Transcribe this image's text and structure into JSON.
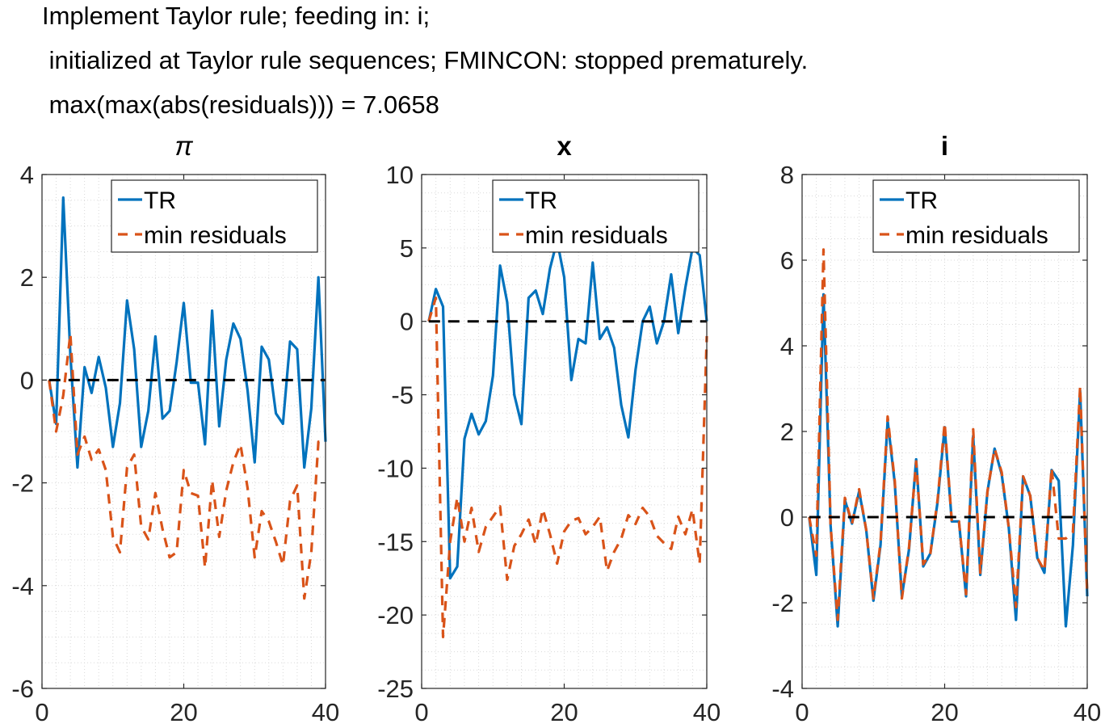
{
  "header": {
    "lines": [
      "Implement Taylor rule; feeding in: i;",
      " initialized at Taylor rule sequences; FMINCON: stopped prematurely.",
      " max(max(abs(residuals))) = 7.0658"
    ]
  },
  "colors": {
    "tr": "#0072BD",
    "min_residuals": "#D95319",
    "zero_line": "#000000",
    "grid": "#d9d9d9"
  },
  "chart_data": [
    {
      "type": "line",
      "title": "π",
      "xlim": [
        0,
        40
      ],
      "ylim": [
        -6,
        4
      ],
      "xticks": [
        0,
        20,
        40
      ],
      "yticks": [
        -6,
        -4,
        -2,
        0,
        2,
        4
      ],
      "grid": "minor",
      "legend": {
        "placement": "top-right",
        "entries": [
          "TR",
          "min residuals"
        ]
      },
      "series": [
        {
          "name": "TR",
          "style": "solid",
          "x": [
            1,
            2,
            3,
            4,
            5,
            6,
            7,
            8,
            9,
            10,
            11,
            12,
            13,
            14,
            15,
            16,
            17,
            18,
            19,
            20,
            21,
            22,
            23,
            24,
            25,
            26,
            27,
            28,
            29,
            30,
            31,
            32,
            33,
            34,
            35,
            36,
            37,
            38,
            39,
            40
          ],
          "values": [
            0.0,
            -0.85,
            3.55,
            0.5,
            -1.7,
            0.25,
            -0.25,
            0.45,
            -0.15,
            -1.3,
            -0.45,
            1.55,
            0.6,
            -1.3,
            -0.6,
            0.85,
            -0.75,
            -0.6,
            0.35,
            1.5,
            -0.05,
            -0.05,
            -1.25,
            1.35,
            -0.9,
            0.4,
            1.1,
            0.8,
            -0.2,
            -1.6,
            0.65,
            0.4,
            -0.65,
            -0.85,
            0.75,
            0.6,
            -1.7,
            -0.55,
            2.0,
            -1.2
          ]
        },
        {
          "name": "min residuals",
          "style": "dashed",
          "x": [
            1,
            2,
            3,
            4,
            5,
            6,
            7,
            8,
            9,
            10,
            11,
            12,
            13,
            14,
            15,
            16,
            17,
            18,
            19,
            20,
            21,
            22,
            23,
            24,
            25,
            26,
            27,
            28,
            29,
            30,
            31,
            32,
            33,
            34,
            35,
            36,
            37,
            38,
            39,
            40
          ],
          "values": [
            0.0,
            -1.0,
            -0.3,
            0.9,
            -1.45,
            -1.1,
            -1.55,
            -1.35,
            -1.75,
            -3.05,
            -3.35,
            -1.7,
            -1.45,
            -2.85,
            -3.1,
            -2.2,
            -2.9,
            -3.45,
            -3.35,
            -1.75,
            -2.2,
            -2.25,
            -3.65,
            -1.95,
            -3.05,
            -2.15,
            -1.6,
            -1.25,
            -2.1,
            -3.45,
            -2.55,
            -2.75,
            -3.15,
            -3.6,
            -2.35,
            -2.05,
            -4.25,
            -3.35,
            -1.2,
            -1.2
          ]
        },
        {
          "name": "",
          "style": "zero",
          "x": [
            1,
            40
          ],
          "values": [
            0,
            0
          ]
        }
      ]
    },
    {
      "type": "line",
      "title": "x",
      "xlim": [
        0,
        40
      ],
      "ylim": [
        -25,
        10
      ],
      "xticks": [
        0,
        20,
        40
      ],
      "yticks": [
        -25,
        -20,
        -15,
        -10,
        -5,
        0,
        5,
        10
      ],
      "grid": "minor",
      "legend": {
        "placement": "top-right",
        "entries": [
          "TR",
          "min residuals"
        ]
      },
      "series": [
        {
          "name": "TR",
          "style": "solid",
          "x": [
            1,
            2,
            3,
            4,
            5,
            6,
            7,
            8,
            9,
            10,
            11,
            12,
            13,
            14,
            15,
            16,
            17,
            18,
            19,
            20,
            21,
            22,
            23,
            24,
            25,
            26,
            27,
            28,
            29,
            30,
            31,
            32,
            33,
            34,
            35,
            36,
            37,
            38,
            39,
            40
          ],
          "values": [
            0.0,
            2.2,
            1.0,
            -17.5,
            -16.7,
            -8.0,
            -6.3,
            -7.7,
            -6.8,
            -3.7,
            3.8,
            1.3,
            -5.0,
            -7.0,
            1.6,
            2.1,
            0.5,
            3.6,
            5.5,
            3.0,
            -4.0,
            -1.2,
            -1.5,
            4.0,
            -1.2,
            -0.4,
            -1.8,
            -5.7,
            -7.9,
            -3.3,
            0.0,
            1.0,
            -1.5,
            0.0,
            3.2,
            -0.8,
            2.3,
            5.0,
            4.5,
            0.0
          ]
        },
        {
          "name": "min residuals",
          "style": "dashed",
          "x": [
            1,
            2,
            3,
            4,
            5,
            6,
            7,
            8,
            9,
            10,
            11,
            12,
            13,
            14,
            15,
            16,
            17,
            18,
            19,
            20,
            21,
            22,
            23,
            24,
            25,
            26,
            27,
            28,
            29,
            30,
            31,
            32,
            33,
            34,
            35,
            36,
            37,
            38,
            39,
            40
          ],
          "values": [
            0.0,
            1.6,
            -21.5,
            -15.0,
            -12.0,
            -15.0,
            -12.7,
            -15.7,
            -14.0,
            -13.3,
            -12.6,
            -17.6,
            -15.3,
            -14.5,
            -13.5,
            -15.2,
            -12.8,
            -14.5,
            -16.5,
            -14.3,
            -13.6,
            -13.4,
            -14.5,
            -14.0,
            -13.3,
            -17.0,
            -15.7,
            -14.8,
            -13.2,
            -13.8,
            -12.7,
            -13.3,
            -14.6,
            -15.1,
            -15.5,
            -13.3,
            -14.5,
            -12.8,
            -16.5,
            -1.0
          ]
        },
        {
          "name": "",
          "style": "zero",
          "x": [
            1,
            40
          ],
          "values": [
            0,
            0
          ]
        }
      ]
    },
    {
      "type": "line",
      "title": "i",
      "xlim": [
        0,
        40
      ],
      "ylim": [
        -4,
        8
      ],
      "xticks": [
        0,
        20,
        40
      ],
      "yticks": [
        -4,
        -2,
        0,
        2,
        4,
        6,
        8
      ],
      "grid": "minor",
      "legend": {
        "placement": "top-right",
        "entries": [
          "TR",
          "min residuals"
        ]
      },
      "series": [
        {
          "name": "TR",
          "style": "solid",
          "x": [
            1,
            2,
            3,
            4,
            5,
            6,
            7,
            8,
            9,
            10,
            11,
            12,
            13,
            14,
            15,
            16,
            17,
            18,
            19,
            20,
            21,
            22,
            23,
            24,
            25,
            26,
            27,
            28,
            29,
            30,
            31,
            32,
            33,
            34,
            35,
            36,
            37,
            38,
            39,
            40
          ],
          "values": [
            0.0,
            -1.35,
            5.2,
            -0.2,
            -2.55,
            0.4,
            -0.15,
            0.6,
            -0.3,
            -1.95,
            -0.65,
            2.25,
            0.8,
            -1.85,
            -0.75,
            1.35,
            -1.15,
            -0.85,
            0.35,
            2.1,
            -0.1,
            -0.1,
            -1.85,
            1.9,
            -1.35,
            0.6,
            1.6,
            1.0,
            -0.25,
            -2.4,
            0.95,
            0.5,
            -0.95,
            -1.3,
            1.1,
            0.85,
            -2.55,
            -0.65,
            2.95,
            -1.85
          ]
        },
        {
          "name": "min residuals",
          "style": "dashed",
          "x": [
            1,
            2,
            3,
            4,
            5,
            6,
            7,
            8,
            9,
            10,
            11,
            12,
            13,
            14,
            15,
            16,
            17,
            18,
            19,
            20,
            21,
            22,
            23,
            24,
            25,
            26,
            27,
            28,
            29,
            30,
            31,
            32,
            33,
            34,
            35,
            36,
            37,
            38,
            39,
            40
          ],
          "values": [
            0.0,
            -0.9,
            6.25,
            -0.2,
            -2.4,
            0.45,
            -0.15,
            0.65,
            -0.3,
            -1.9,
            -0.6,
            2.35,
            0.85,
            -1.9,
            -0.7,
            1.3,
            -1.1,
            -0.85,
            0.4,
            2.2,
            -0.1,
            -0.1,
            -1.8,
            2.05,
            -1.3,
            0.6,
            1.6,
            1.05,
            -0.25,
            -2.1,
            0.95,
            0.5,
            -0.95,
            -1.25,
            1.15,
            -0.5,
            -0.5,
            -0.35,
            3.05,
            -1.8
          ]
        },
        {
          "name": "",
          "style": "zero",
          "x": [
            1,
            40
          ],
          "values": [
            0,
            0
          ]
        }
      ]
    }
  ]
}
